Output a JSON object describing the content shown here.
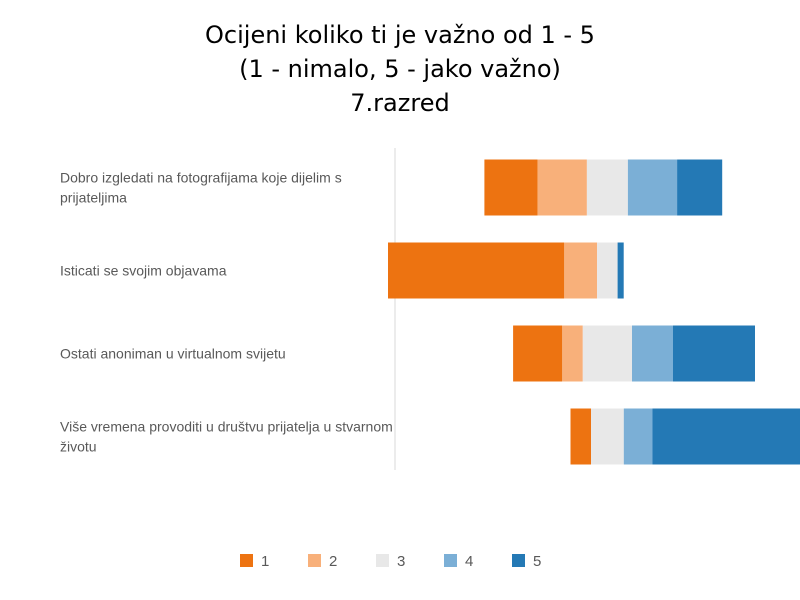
{
  "title": {
    "line1": "Ocijeni koliko ti je važno od 1 - 5",
    "line2": "(1 - nimalo, 5 - jako važno)",
    "line3": "7.razred"
  },
  "chart_data": {
    "type": "bar",
    "stacked": "diverging-horizontal",
    "categories": [
      [
        "Dobro izgledati na fotografijama koje dijelim s",
        "prijateljima"
      ],
      [
        "Isticati se svojim objavama"
      ],
      [
        "Ostati anoniman u virtualnom svijetu"
      ],
      [
        "Više vremena provoditi u društvu prijatelja u stvarnom",
        "životu"
      ]
    ],
    "series": [
      {
        "name": "1",
        "color": "#ED7311",
        "values": [
          13,
          43,
          12,
          5
        ]
      },
      {
        "name": "2",
        "color": "#F8B07A",
        "values": [
          12,
          8,
          5,
          0
        ]
      },
      {
        "name": "3",
        "color": "#E8E8E8",
        "values": [
          10,
          5,
          12,
          8
        ]
      },
      {
        "name": "4",
        "color": "#7BAFD6",
        "values": [
          12,
          0,
          10,
          7
        ]
      },
      {
        "name": "5",
        "color": "#2479B5",
        "values": [
          11,
          1.5,
          20,
          38
        ]
      }
    ],
    "legend": "bottom",
    "grid": false
  }
}
